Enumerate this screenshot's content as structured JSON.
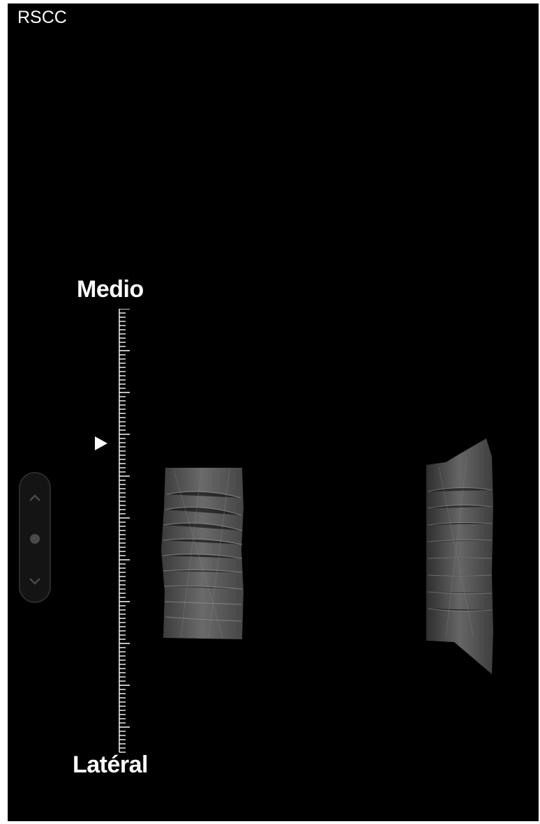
{
  "viewer": {
    "view_label": "RSCC",
    "orientation_top": "Medio",
    "orientation_bottom": "Latéral",
    "slice_pointer_fraction": 0.3
  },
  "icons": {
    "slice_up": "chevron-up-icon",
    "slice_center": "dot-icon",
    "slice_down": "chevron-down-icon",
    "pointer": "triangle-right-icon"
  },
  "colors": {
    "background": "#000000",
    "text": "#ffffff"
  }
}
